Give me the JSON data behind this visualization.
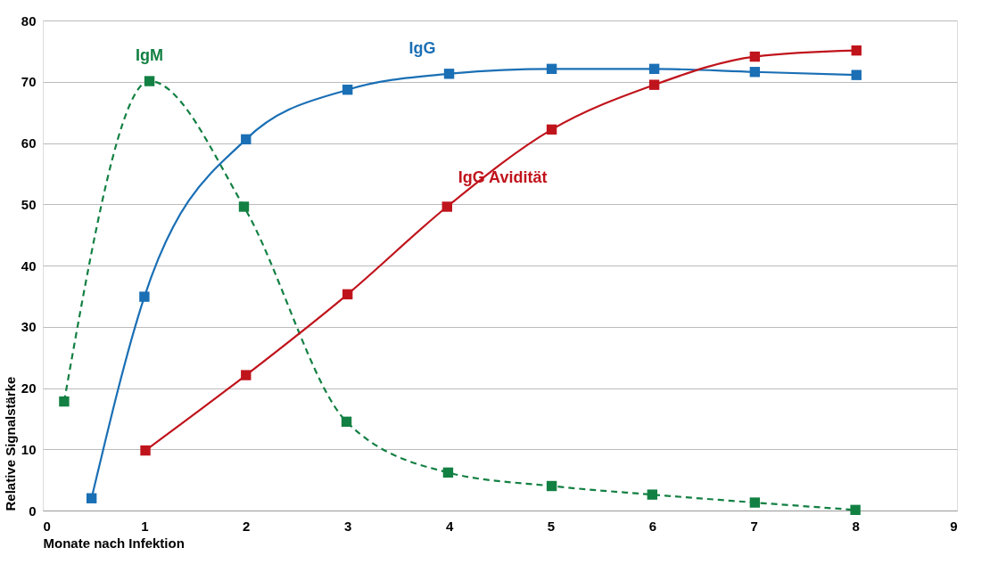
{
  "chart_data": {
    "type": "line",
    "xlabel": "Monate nach Infektion",
    "ylabel": "Relative Signalstärke",
    "xlim": [
      0,
      9
    ],
    "xticks": [
      0,
      1,
      2,
      3,
      4,
      5,
      6,
      7,
      8,
      9
    ],
    "ylim": [
      0,
      80
    ],
    "yticks": [
      0,
      10,
      20,
      30,
      40,
      50,
      60,
      70,
      80
    ],
    "grid": "y",
    "marker": "square",
    "series": [
      {
        "name": "IgM",
        "color": "#138043",
        "line_style": "dashed",
        "x": [
          0.21,
          1.05,
          1.98,
          2.99,
          3.99,
          5.01,
          6.0,
          7.01,
          8.0
        ],
        "values": [
          17.8,
          70.1,
          49.6,
          14.5,
          6.2,
          4.0,
          2.6,
          1.3,
          0.1
        ]
      },
      {
        "name": "IgG",
        "color": "#1a6fb5",
        "line_style": "solid",
        "x": [
          0.48,
          1.0,
          2.0,
          3.0,
          4.0,
          5.01,
          6.02,
          7.01,
          8.01
        ],
        "values": [
          2.0,
          34.9,
          60.6,
          68.7,
          71.3,
          72.1,
          72.1,
          71.6,
          71.1
        ]
      },
      {
        "name": "IgG Avidität",
        "color": "#c0141c",
        "line_style": "solid",
        "x": [
          1.01,
          2.0,
          3.0,
          3.98,
          5.01,
          6.02,
          7.01,
          8.01
        ],
        "values": [
          9.8,
          22.1,
          35.3,
          49.6,
          62.2,
          69.5,
          74.1,
          75.1
        ]
      }
    ]
  }
}
